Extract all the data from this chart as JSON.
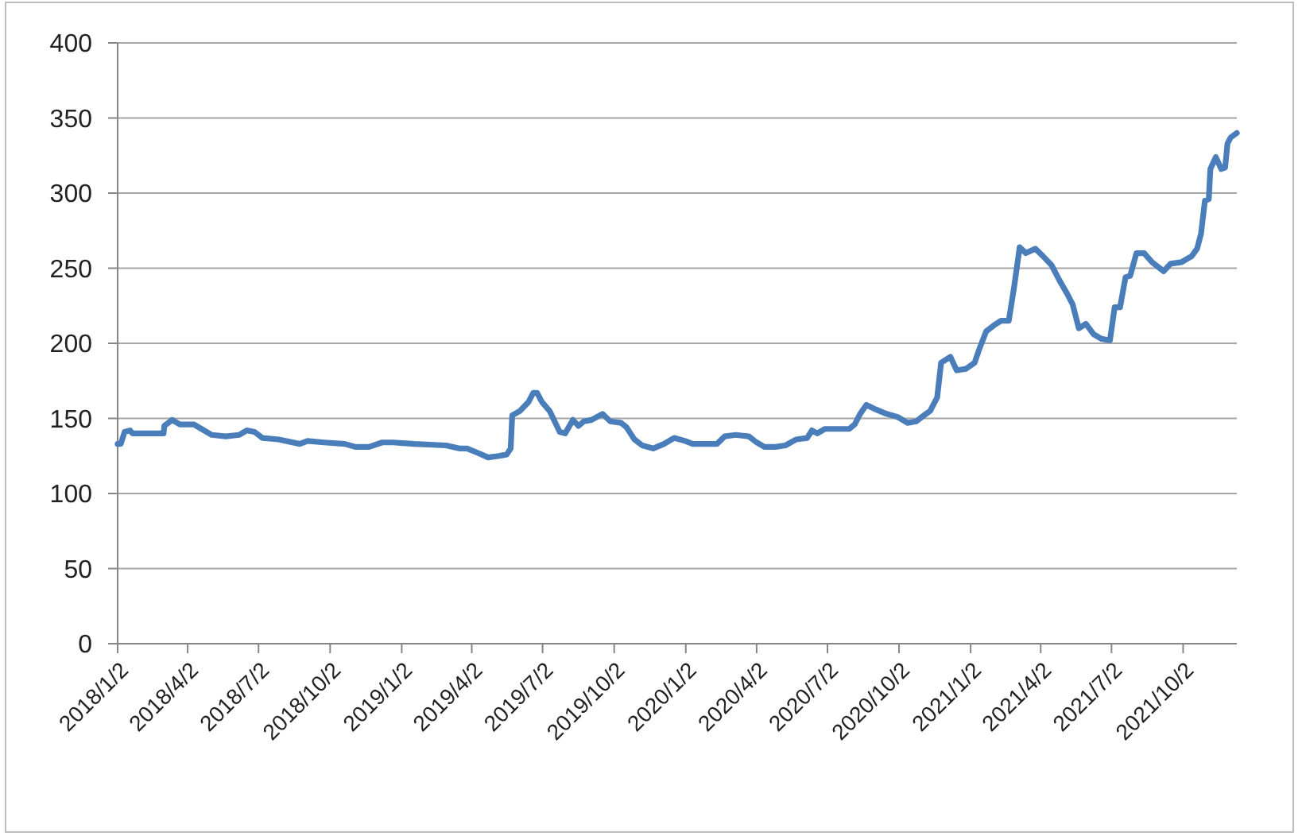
{
  "chart_data": {
    "type": "line",
    "x": [
      "2018-01-02",
      "2018-01-06",
      "2018-01-11",
      "2018-01-18",
      "2018-01-21",
      "2018-03-02",
      "2018-03-03",
      "2018-03-13",
      "2018-03-23",
      "2018-04-10",
      "2018-04-23",
      "2018-05-03",
      "2018-05-21",
      "2018-06-07",
      "2018-06-17",
      "2018-06-27",
      "2018-07-07",
      "2018-07-28",
      "2018-08-24",
      "2018-09-03",
      "2018-09-24",
      "2018-10-21",
      "2018-11-04",
      "2018-11-21",
      "2018-12-08",
      "2018-12-22",
      "2019-01-18",
      "2019-02-28",
      "2019-03-17",
      "2019-03-27",
      "2019-04-10",
      "2019-04-23",
      "2019-05-07",
      "2019-05-17",
      "2019-05-22",
      "2019-05-24",
      "2019-06-03",
      "2019-06-14",
      "2019-06-20",
      "2019-06-25",
      "2019-07-01",
      "2019-07-11",
      "2019-07-24",
      "2019-07-31",
      "2019-08-10",
      "2019-08-17",
      "2019-08-24",
      "2019-09-03",
      "2019-09-17",
      "2019-09-27",
      "2019-10-11",
      "2019-10-18",
      "2019-10-28",
      "2019-11-07",
      "2019-11-21",
      "2019-12-05",
      "2019-12-18",
      "2020-01-01",
      "2020-01-11",
      "2020-02-11",
      "2020-02-21",
      "2020-03-06",
      "2020-03-23",
      "2020-04-02",
      "2020-04-12",
      "2020-04-26",
      "2020-05-09",
      "2020-05-23",
      "2020-06-06",
      "2020-06-12",
      "2020-06-19",
      "2020-06-29",
      "2020-07-30",
      "2020-08-06",
      "2020-08-13",
      "2020-08-21",
      "2020-09-02",
      "2020-09-16",
      "2020-09-30",
      "2020-10-13",
      "2020-10-24",
      "2020-11-03",
      "2020-11-11",
      "2020-11-20",
      "2020-11-25",
      "2020-12-07",
      "2020-12-15",
      "2020-12-27",
      "2021-01-07",
      "2021-01-13",
      "2021-01-22",
      "2021-02-01",
      "2021-02-10",
      "2021-02-20",
      "2021-02-27",
      "2021-03-06",
      "2021-03-14",
      "2021-03-26",
      "2021-04-05",
      "2021-04-16",
      "2021-04-26",
      "2021-05-06",
      "2021-05-13",
      "2021-05-21",
      "2021-05-30",
      "2021-06-09",
      "2021-06-19",
      "2021-06-30",
      "2021-07-06",
      "2021-07-13",
      "2021-07-20",
      "2021-07-26",
      "2021-08-03",
      "2021-08-13",
      "2021-08-23",
      "2021-09-07",
      "2021-09-16",
      "2021-09-30",
      "2021-10-13",
      "2021-10-20",
      "2021-10-25",
      "2021-10-30",
      "2021-11-04",
      "2021-11-06",
      "2021-11-13",
      "2021-11-20",
      "2021-11-25",
      "2021-11-28",
      "2021-12-02",
      "2021-12-10"
    ],
    "series": [
      {
        "color": "#4a7ebb",
        "values": [
          133,
          133,
          141,
          142,
          140,
          140,
          145,
          149,
          146,
          146,
          142,
          139,
          138,
          139,
          142,
          141,
          137,
          136,
          133,
          135,
          134,
          133,
          131,
          131,
          134,
          134,
          133,
          132,
          130,
          130,
          127,
          124,
          125,
          126,
          130,
          152,
          155,
          161,
          167,
          167,
          161,
          155,
          141,
          140,
          149,
          145,
          148,
          149,
          153,
          148,
          147,
          144,
          136,
          132,
          130,
          133,
          137,
          135,
          133,
          133,
          138,
          139,
          138,
          134,
          131,
          131,
          132,
          136,
          137,
          142,
          140,
          143,
          143,
          146,
          153,
          159,
          156,
          153,
          151,
          147,
          148,
          152,
          155,
          164,
          187,
          191,
          182,
          183,
          187,
          196,
          208,
          212,
          215,
          215,
          238,
          264,
          260,
          263,
          258,
          252,
          242,
          233,
          226,
          210,
          213,
          206,
          203,
          202,
          224,
          224,
          244,
          245,
          260,
          260,
          254,
          248,
          253,
          254,
          258,
          263,
          273,
          295,
          296,
          316,
          324,
          316,
          317,
          333,
          337,
          340
        ]
      }
    ],
    "xlim": [
      "2018-01-02",
      "2021-12-10"
    ],
    "xticks": [
      {
        "value": "2018-01-02",
        "label": "2018/1/2"
      },
      {
        "value": "2018-04-02",
        "label": "2018/4/2"
      },
      {
        "value": "2018-07-02",
        "label": "2018/7/2"
      },
      {
        "value": "2018-10-02",
        "label": "2018/10/2"
      },
      {
        "value": "2019-01-02",
        "label": "2019/1/2"
      },
      {
        "value": "2019-04-02",
        "label": "2019/4/2"
      },
      {
        "value": "2019-07-02",
        "label": "2019/7/2"
      },
      {
        "value": "2019-10-02",
        "label": "2019/10/2"
      },
      {
        "value": "2020-01-02",
        "label": "2020/1/2"
      },
      {
        "value": "2020-04-02",
        "label": "2020/4/2"
      },
      {
        "value": "2020-07-02",
        "label": "2020/7/2"
      },
      {
        "value": "2020-10-02",
        "label": "2020/10/2"
      },
      {
        "value": "2021-01-02",
        "label": "2021/1/2"
      },
      {
        "value": "2021-04-02",
        "label": "2021/4/2"
      },
      {
        "value": "2021-07-02",
        "label": "2021/7/2"
      },
      {
        "value": "2021-10-02",
        "label": "2021/10/2"
      }
    ],
    "ylim": [
      0,
      400
    ],
    "yticks": [
      0,
      50,
      100,
      150,
      200,
      250,
      300,
      350,
      400
    ],
    "grid": "y",
    "line_style": "solid"
  }
}
